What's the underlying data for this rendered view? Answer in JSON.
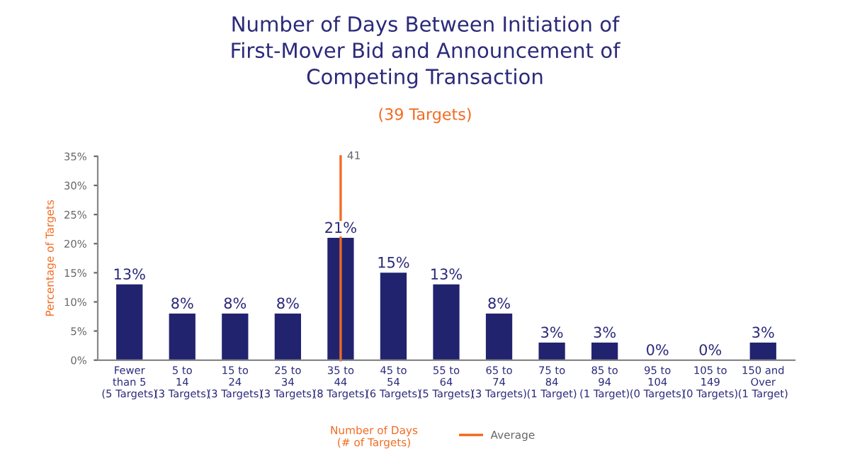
{
  "chart_data": {
    "type": "bar",
    "title": "Number of Days Between Initiation of\nFirst-Mover Bid and Announcement of\nCompeting Transaction",
    "subtitle": "(39 Targets)",
    "xlabel": "Number of Days\n(# of Targets)",
    "ylabel": "Percentage of Targets",
    "categories": [
      "Fewer\nthan 5\n(5 Targets)",
      "5 to\n14\n(3 Targets)",
      "15 to\n24\n(3 Targets)",
      "25 to\n34\n(3 Targets)",
      "35 to\n44\n(8 Targets)",
      "45 to\n54\n(6 Targets)",
      "55 to\n64\n(5 Targets)",
      "65 to\n74\n(3 Targets)",
      "75 to\n84\n(1 Target)",
      "85 to\n94\n(1 Target)",
      "95 to\n104\n(0 Targets)",
      "105 to\n149\n(0 Targets)",
      "150 and\nOver\n(1 Target)"
    ],
    "values": [
      13,
      8,
      8,
      8,
      21,
      15,
      13,
      8,
      3,
      3,
      0,
      0,
      3
    ],
    "value_labels": [
      "13%",
      "8%",
      "8%",
      "8%",
      "21%",
      "15%",
      "13%",
      "8%",
      "3%",
      "3%",
      "0%",
      "0%",
      "3%"
    ],
    "color": "#22236f",
    "ylim": [
      0,
      35
    ],
    "yticks": [
      {
        "value": 0,
        "label": "0%"
      },
      {
        "value": 5,
        "label": "5%"
      },
      {
        "value": 10,
        "label": "10%"
      },
      {
        "value": 15,
        "label": "15%"
      },
      {
        "value": 20,
        "label": "20%"
      },
      {
        "value": 25,
        "label": "25%"
      },
      {
        "value": 30,
        "label": "30%"
      },
      {
        "value": 35,
        "label": "35%"
      }
    ],
    "ref_lines": [
      {
        "axis": "x",
        "value": "35 to\n44\n(8 Targets)",
        "label": "Average",
        "color": "#f26b21"
      }
    ],
    "annotations": [
      "41"
    ],
    "grid": false
  }
}
